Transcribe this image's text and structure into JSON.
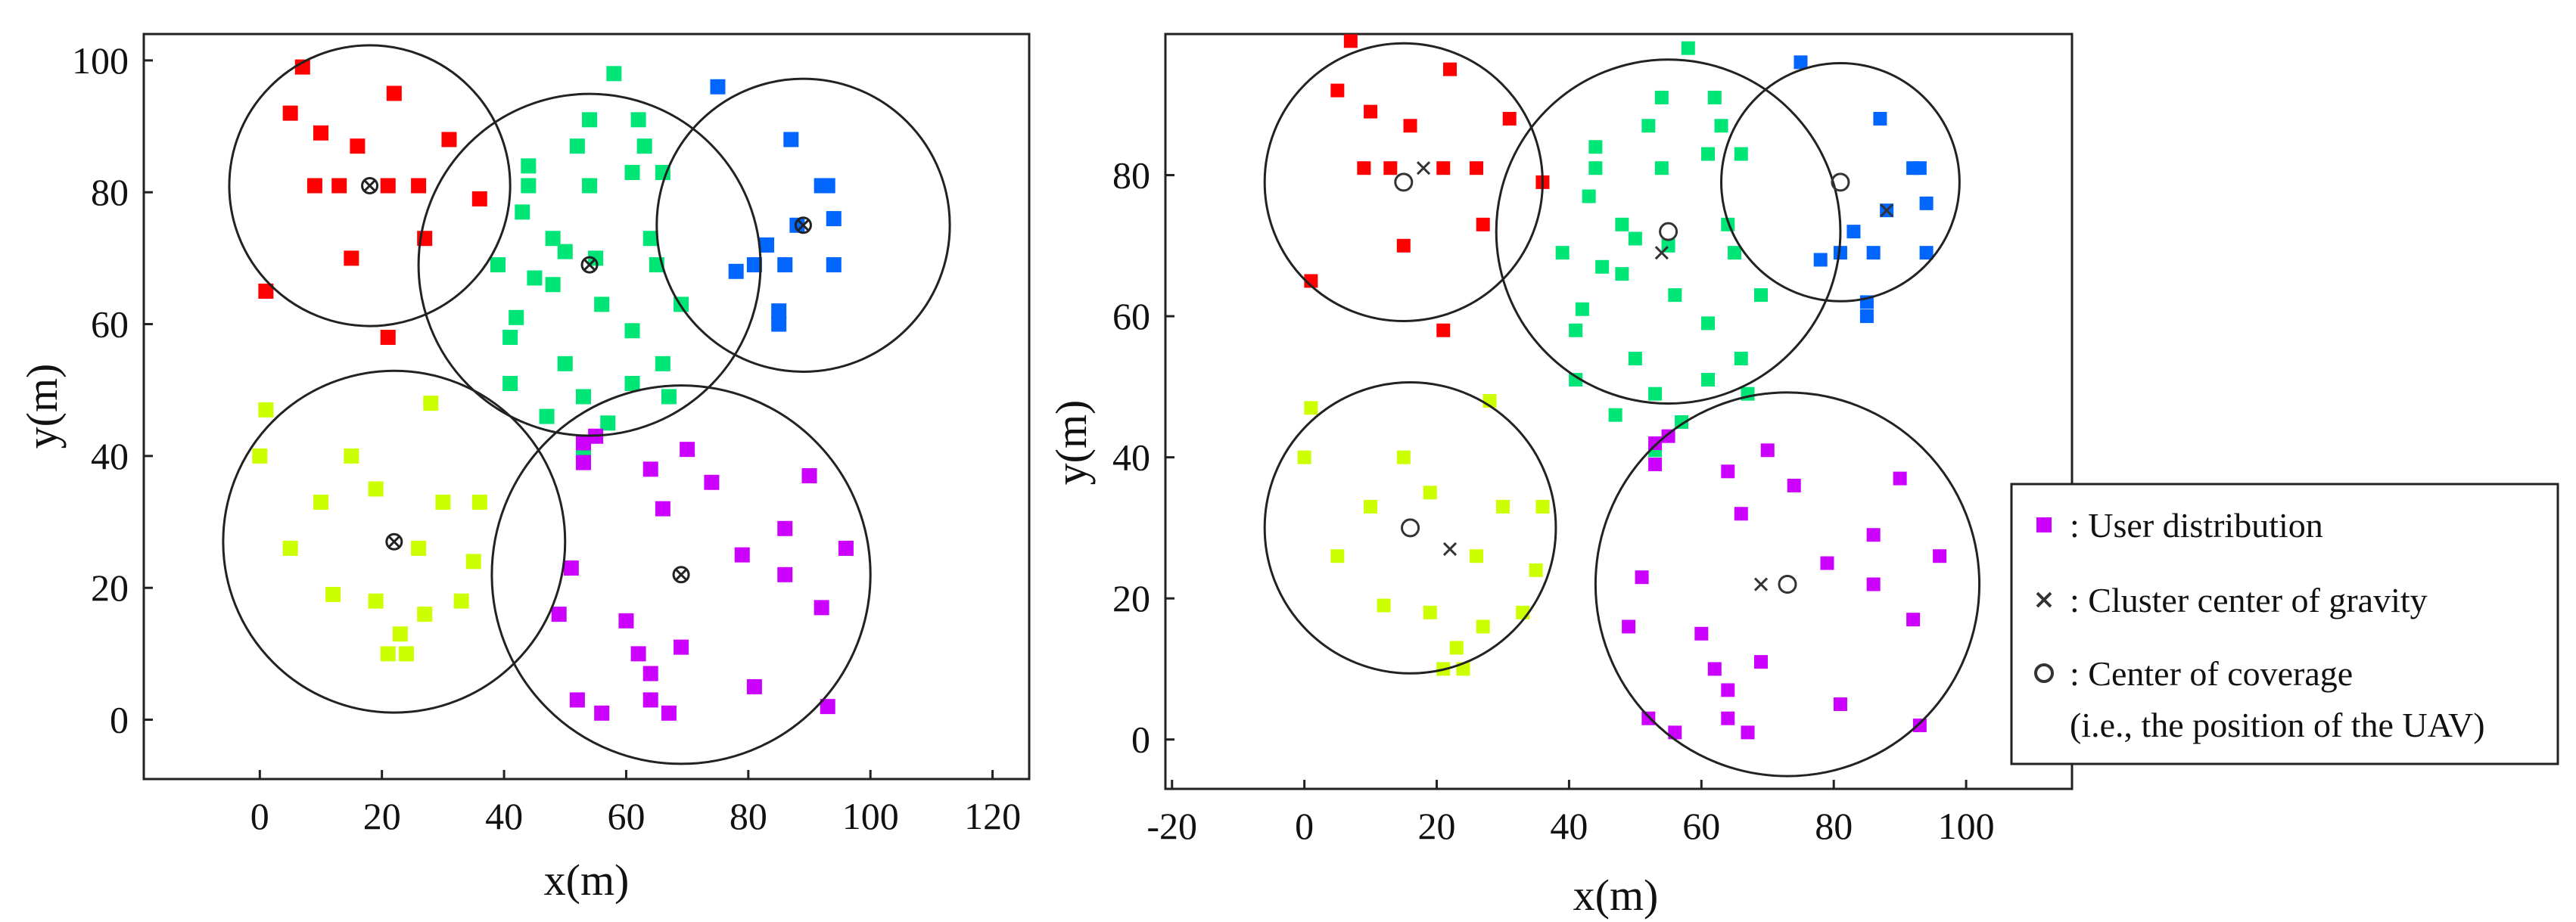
{
  "chart_data": [
    {
      "type": "scatter",
      "title": "",
      "xlabel": "x(m)",
      "ylabel": "y(m)",
      "xlim": [
        -19,
        126
      ],
      "ylim": [
        -9,
        104
      ],
      "xticks": [
        0,
        20,
        40,
        60,
        80,
        100,
        120
      ],
      "yticks": [
        0,
        20,
        40,
        60,
        80,
        100
      ],
      "grid": false,
      "series": [
        {
          "name": "red",
          "color": "#ff0000",
          "points": [
            [
              1,
              65
            ],
            [
              5,
              92
            ],
            [
              7,
              99
            ],
            [
              9,
              81
            ],
            [
              10,
              89
            ],
            [
              13,
              81
            ],
            [
              15,
              70
            ],
            [
              16,
              87
            ],
            [
              21,
              58
            ],
            [
              21,
              81
            ],
            [
              22,
              95
            ],
            [
              26,
              81
            ],
            [
              27,
              73
            ],
            [
              31,
              88
            ],
            [
              36,
              79
            ]
          ]
        },
        {
          "name": "green",
          "color": "#00e676",
          "points": [
            [
              39,
              69
            ],
            [
              41,
              51
            ],
            [
              41,
              58
            ],
            [
              42,
              61
            ],
            [
              43,
              77
            ],
            [
              44,
              81
            ],
            [
              44,
              84
            ],
            [
              45,
              67
            ],
            [
              47,
              46
            ],
            [
              48,
              66
            ],
            [
              48,
              73
            ],
            [
              50,
              71
            ],
            [
              50,
              54
            ],
            [
              52,
              87
            ],
            [
              53,
              41
            ],
            [
              53,
              49
            ],
            [
              54,
              91
            ],
            [
              54,
              81
            ],
            [
              55,
              70
            ],
            [
              56,
              63
            ],
            [
              57,
              45
            ],
            [
              58,
              98
            ],
            [
              61,
              51
            ],
            [
              61,
              59
            ],
            [
              61,
              83
            ],
            [
              62,
              91
            ],
            [
              63,
              87
            ],
            [
              64,
              73
            ],
            [
              65,
              69
            ],
            [
              66,
              83
            ],
            [
              66,
              54
            ],
            [
              67,
              49
            ],
            [
              69,
              63
            ]
          ]
        },
        {
          "name": "blue",
          "color": "#0066ff",
          "points": [
            [
              75,
              96
            ],
            [
              78,
              68
            ],
            [
              81,
              69
            ],
            [
              83,
              72
            ],
            [
              85,
              62
            ],
            [
              85,
              60
            ],
            [
              86,
              69
            ],
            [
              87,
              88
            ],
            [
              88,
              75
            ],
            [
              92,
              81
            ],
            [
              93,
              81
            ],
            [
              94,
              69
            ],
            [
              94,
              76
            ]
          ]
        },
        {
          "name": "yellow-green",
          "color": "#ccff00",
          "points": [
            [
              0,
              40
            ],
            [
              1,
              47
            ],
            [
              5,
              26
            ],
            [
              10,
              33
            ],
            [
              12,
              19
            ],
            [
              15,
              40
            ],
            [
              19,
              35
            ],
            [
              19,
              18
            ],
            [
              21,
              10
            ],
            [
              23,
              13
            ],
            [
              24,
              10
            ],
            [
              26,
              26
            ],
            [
              27,
              16
            ],
            [
              28,
              48
            ],
            [
              30,
              33
            ],
            [
              33,
              18
            ],
            [
              35,
              24
            ],
            [
              36,
              33
            ]
          ]
        },
        {
          "name": "magenta",
          "color": "#cc00ff",
          "points": [
            [
              49,
              16
            ],
            [
              51,
              23
            ],
            [
              52,
              3
            ],
            [
              53,
              39
            ],
            [
              53,
              42
            ],
            [
              55,
              43
            ],
            [
              56,
              1
            ],
            [
              60,
              15
            ],
            [
              62,
              10
            ],
            [
              64,
              38
            ],
            [
              64,
              7
            ],
            [
              64,
              3
            ],
            [
              66,
              32
            ],
            [
              67,
              1
            ],
            [
              69,
              11
            ],
            [
              70,
              41
            ],
            [
              74,
              36
            ],
            [
              79,
              25
            ],
            [
              81,
              5
            ],
            [
              86,
              22
            ],
            [
              86,
              29
            ],
            [
              90,
              37
            ],
            [
              92,
              17
            ],
            [
              93,
              2
            ],
            [
              96,
              26
            ]
          ]
        }
      ],
      "coverage_circles": [
        {
          "center": [
            18,
            81
          ],
          "radius": 23
        },
        {
          "center": [
            54,
            69
          ],
          "radius": 28
        },
        {
          "center": [
            89,
            75
          ],
          "radius": 24
        },
        {
          "center": [
            22,
            27
          ],
          "radius": 28
        },
        {
          "center": [
            69,
            22
          ],
          "radius": 31
        }
      ]
    },
    {
      "type": "scatter",
      "title": "",
      "xlabel": "x(m)",
      "ylabel": "y(m)",
      "xlim": [
        -21,
        116
      ],
      "ylim": [
        -7,
        100
      ],
      "xticks": [
        -20,
        0,
        20,
        40,
        60,
        80,
        100
      ],
      "yticks": [
        0,
        20,
        40,
        60,
        80
      ],
      "grid": false,
      "series": [
        {
          "name": "red",
          "color": "#ff0000",
          "points": [
            [
              1,
              65
            ],
            [
              5,
              92
            ],
            [
              7,
              99
            ],
            [
              9,
              81
            ],
            [
              10,
              89
            ],
            [
              13,
              81
            ],
            [
              15,
              70
            ],
            [
              16,
              87
            ],
            [
              21,
              58
            ],
            [
              21,
              81
            ],
            [
              22,
              95
            ],
            [
              26,
              81
            ],
            [
              27,
              73
            ],
            [
              31,
              88
            ],
            [
              36,
              79
            ]
          ]
        },
        {
          "name": "green",
          "color": "#00e676",
          "points": [
            [
              39,
              69
            ],
            [
              41,
              51
            ],
            [
              41,
              58
            ],
            [
              42,
              61
            ],
            [
              43,
              77
            ],
            [
              44,
              81
            ],
            [
              44,
              84
            ],
            [
              45,
              67
            ],
            [
              47,
              46
            ],
            [
              48,
              66
            ],
            [
              48,
              73
            ],
            [
              50,
              71
            ],
            [
              50,
              54
            ],
            [
              52,
              87
            ],
            [
              53,
              41
            ],
            [
              53,
              49
            ],
            [
              54,
              91
            ],
            [
              54,
              81
            ],
            [
              55,
              70
            ],
            [
              56,
              63
            ],
            [
              57,
              45
            ],
            [
              58,
              98
            ],
            [
              61,
              51
            ],
            [
              61,
              59
            ],
            [
              61,
              83
            ],
            [
              62,
              91
            ],
            [
              63,
              87
            ],
            [
              64,
              73
            ],
            [
              65,
              69
            ],
            [
              66,
              83
            ],
            [
              66,
              54
            ],
            [
              67,
              49
            ],
            [
              69,
              63
            ]
          ]
        },
        {
          "name": "blue",
          "color": "#0066ff",
          "points": [
            [
              75,
              96
            ],
            [
              78,
              68
            ],
            [
              81,
              69
            ],
            [
              83,
              72
            ],
            [
              85,
              62
            ],
            [
              85,
              60
            ],
            [
              86,
              69
            ],
            [
              87,
              88
            ],
            [
              88,
              75
            ],
            [
              92,
              81
            ],
            [
              93,
              81
            ],
            [
              94,
              69
            ],
            [
              94,
              76
            ]
          ]
        },
        {
          "name": "yellow-green",
          "color": "#ccff00",
          "points": [
            [
              0,
              40
            ],
            [
              1,
              47
            ],
            [
              5,
              26
            ],
            [
              10,
              33
            ],
            [
              12,
              19
            ],
            [
              15,
              40
            ],
            [
              19,
              35
            ],
            [
              19,
              18
            ],
            [
              21,
              10
            ],
            [
              23,
              13
            ],
            [
              24,
              10
            ],
            [
              26,
              26
            ],
            [
              27,
              16
            ],
            [
              28,
              48
            ],
            [
              30,
              33
            ],
            [
              33,
              18
            ],
            [
              35,
              24
            ],
            [
              36,
              33
            ]
          ]
        },
        {
          "name": "magenta",
          "color": "#cc00ff",
          "points": [
            [
              49,
              16
            ],
            [
              51,
              23
            ],
            [
              52,
              3
            ],
            [
              53,
              39
            ],
            [
              53,
              42
            ],
            [
              55,
              43
            ],
            [
              56,
              1
            ],
            [
              60,
              15
            ],
            [
              62,
              10
            ],
            [
              64,
              38
            ],
            [
              64,
              7
            ],
            [
              64,
              3
            ],
            [
              66,
              32
            ],
            [
              67,
              1
            ],
            [
              69,
              11
            ],
            [
              70,
              41
            ],
            [
              74,
              36
            ],
            [
              79,
              25
            ],
            [
              81,
              5
            ],
            [
              86,
              22
            ],
            [
              86,
              29
            ],
            [
              90,
              37
            ],
            [
              92,
              17
            ],
            [
              93,
              2
            ],
            [
              96,
              26
            ]
          ]
        }
      ],
      "cluster_centers": [
        [
          18,
          81
        ],
        [
          54,
          69
        ],
        [
          88,
          75
        ],
        [
          22,
          27
        ],
        [
          69,
          22
        ]
      ],
      "coverage_circles": [
        {
          "center": [
            15,
            79
          ],
          "radius": 21
        },
        {
          "center": [
            55,
            72
          ],
          "radius": 26
        },
        {
          "center": [
            81,
            79
          ],
          "radius": 18
        },
        {
          "center": [
            16,
            30
          ],
          "radius": 22
        },
        {
          "center": [
            73,
            22
          ],
          "radius": 29
        }
      ],
      "legend": {
        "placement": "right",
        "entries": [
          {
            "marker": "square",
            "color": "#cc00ff",
            "label": ": User distribution"
          },
          {
            "marker": "cross",
            "color": "#333333",
            "label": ": Cluster center of gravity"
          },
          {
            "marker": "circle",
            "color": "#333333",
            "label": ": Center of coverage",
            "label2": "(i.e., the position of the UAV)"
          }
        ]
      }
    }
  ]
}
